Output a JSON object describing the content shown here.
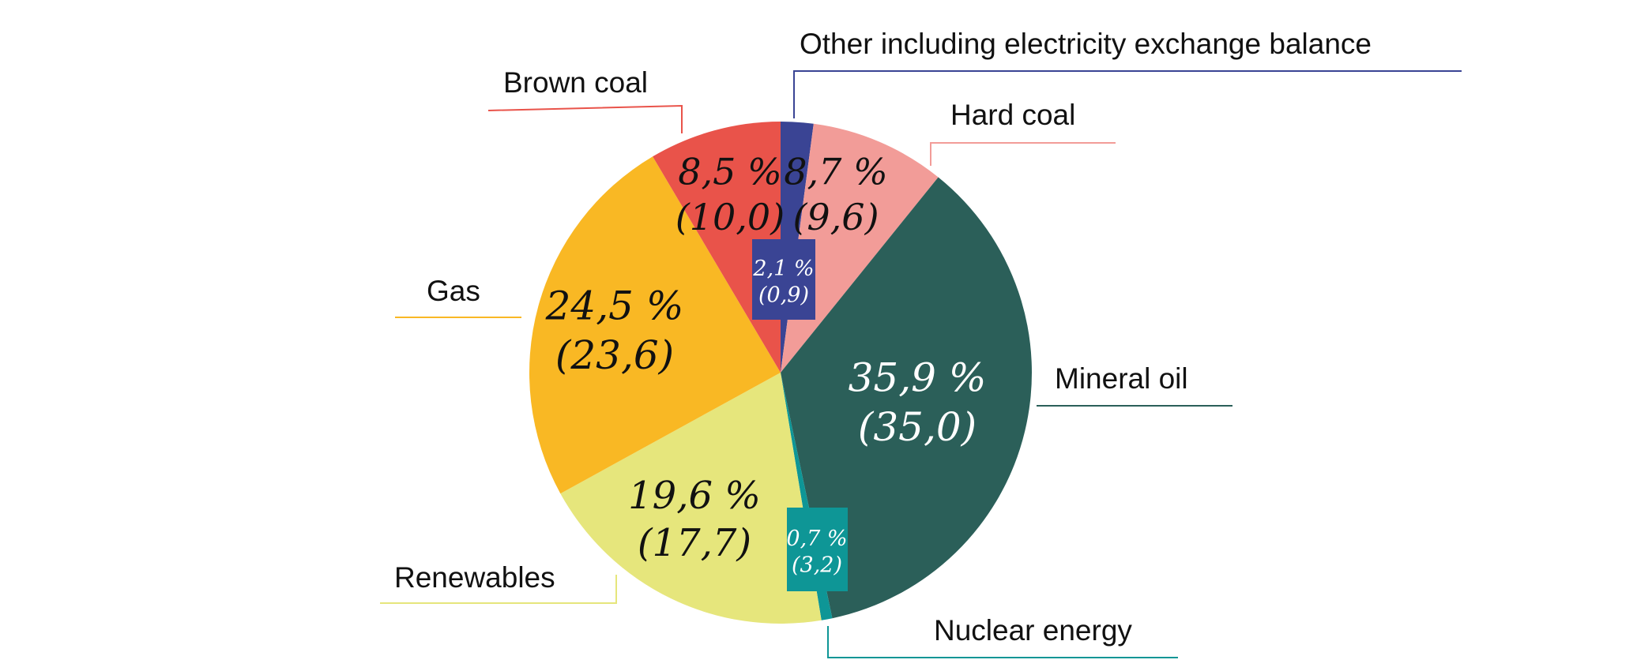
{
  "chart_data": {
    "type": "pie",
    "start": "top",
    "direction": "clockwise",
    "slices": [
      {
        "name": "Other including electricity exchange balance",
        "value": 2.1,
        "label": "2,1 %",
        "sublabel": "(0,9)",
        "color": "#3a4494",
        "text_color": "#ffffff",
        "boxed": true
      },
      {
        "name": "Hard coal",
        "value": 8.7,
        "label": "8,7 %",
        "sublabel": "(9,6)",
        "color": "#f29c98",
        "text_color": "#111111",
        "boxed": false
      },
      {
        "name": "Mineral oil",
        "value": 35.9,
        "label": "35,9 %",
        "sublabel": "(35,0)",
        "color": "#2b5f59",
        "text_color": "#ffffff",
        "boxed": false
      },
      {
        "name": "Nuclear energy",
        "value": 0.7,
        "label": "0,7 %",
        "sublabel": "(3,2)",
        "color": "#0e9696",
        "text_color": "#ffffff",
        "boxed": true
      },
      {
        "name": "Renewables",
        "value": 19.6,
        "label": "19,6 %",
        "sublabel": "(17,7)",
        "color": "#e6e67c",
        "text_color": "#111111",
        "boxed": false
      },
      {
        "name": "Gas",
        "value": 24.5,
        "label": "24,5 %",
        "sublabel": "(23,6)",
        "color": "#f9b824",
        "text_color": "#111111",
        "boxed": false
      },
      {
        "name": "Brown coal",
        "value": 8.5,
        "label": "8,5 %",
        "sublabel": "(10,0)",
        "color": "#e9534a",
        "text_color": "#111111",
        "boxed": false
      }
    ]
  }
}
